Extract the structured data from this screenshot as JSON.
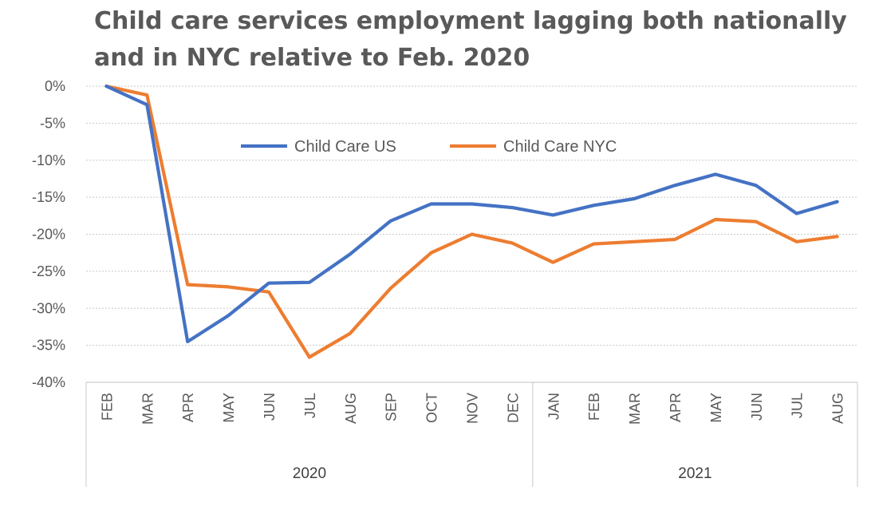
{
  "chart_data": {
    "type": "line",
    "title_line1": "Child care services employment lagging both nationally",
    "title_line2": "and in NYC relative to Feb. 2020",
    "categories": [
      "FEB",
      "MAR",
      "APR",
      "MAY",
      "JUN",
      "JUL",
      "AUG",
      "SEP",
      "OCT",
      "NOV",
      "DEC",
      "JAN",
      "FEB",
      "MAR",
      "APR",
      "MAY",
      "JUN",
      "JUL",
      "AUG"
    ],
    "groups": [
      {
        "label": "2020",
        "start": 0,
        "end": 10
      },
      {
        "label": "2021",
        "start": 11,
        "end": 18
      }
    ],
    "ylim": [
      -40,
      0
    ],
    "yticks": [
      0,
      -5,
      -10,
      -15,
      -20,
      -25,
      -30,
      -35,
      -40
    ],
    "ytick_labels": [
      "0%",
      "-5%",
      "-10%",
      "-15%",
      "-20%",
      "-25%",
      "-30%",
      "-35%",
      "-40%"
    ],
    "grid": true,
    "legend_position": "top-center",
    "series": [
      {
        "name": "Child Care US",
        "color": "#4472C4",
        "values": [
          0,
          -2.5,
          -34.5,
          -31,
          -26.6,
          -26.5,
          -22.7,
          -18.2,
          -15.9,
          -15.9,
          -16.4,
          -17.4,
          -16.1,
          -15.2,
          -13.4,
          -11.9,
          -13.4,
          -17.2,
          -15.6
        ]
      },
      {
        "name": "Child Care NYC",
        "color": "#ED7D31",
        "values": [
          0,
          -1.2,
          -26.8,
          -27.1,
          -27.8,
          -36.6,
          -33.4,
          -27.3,
          -22.5,
          -20.0,
          -21.2,
          -23.8,
          -21.3,
          -21.0,
          -20.7,
          -18.0,
          -18.3,
          -21.0,
          -20.3
        ]
      }
    ]
  }
}
